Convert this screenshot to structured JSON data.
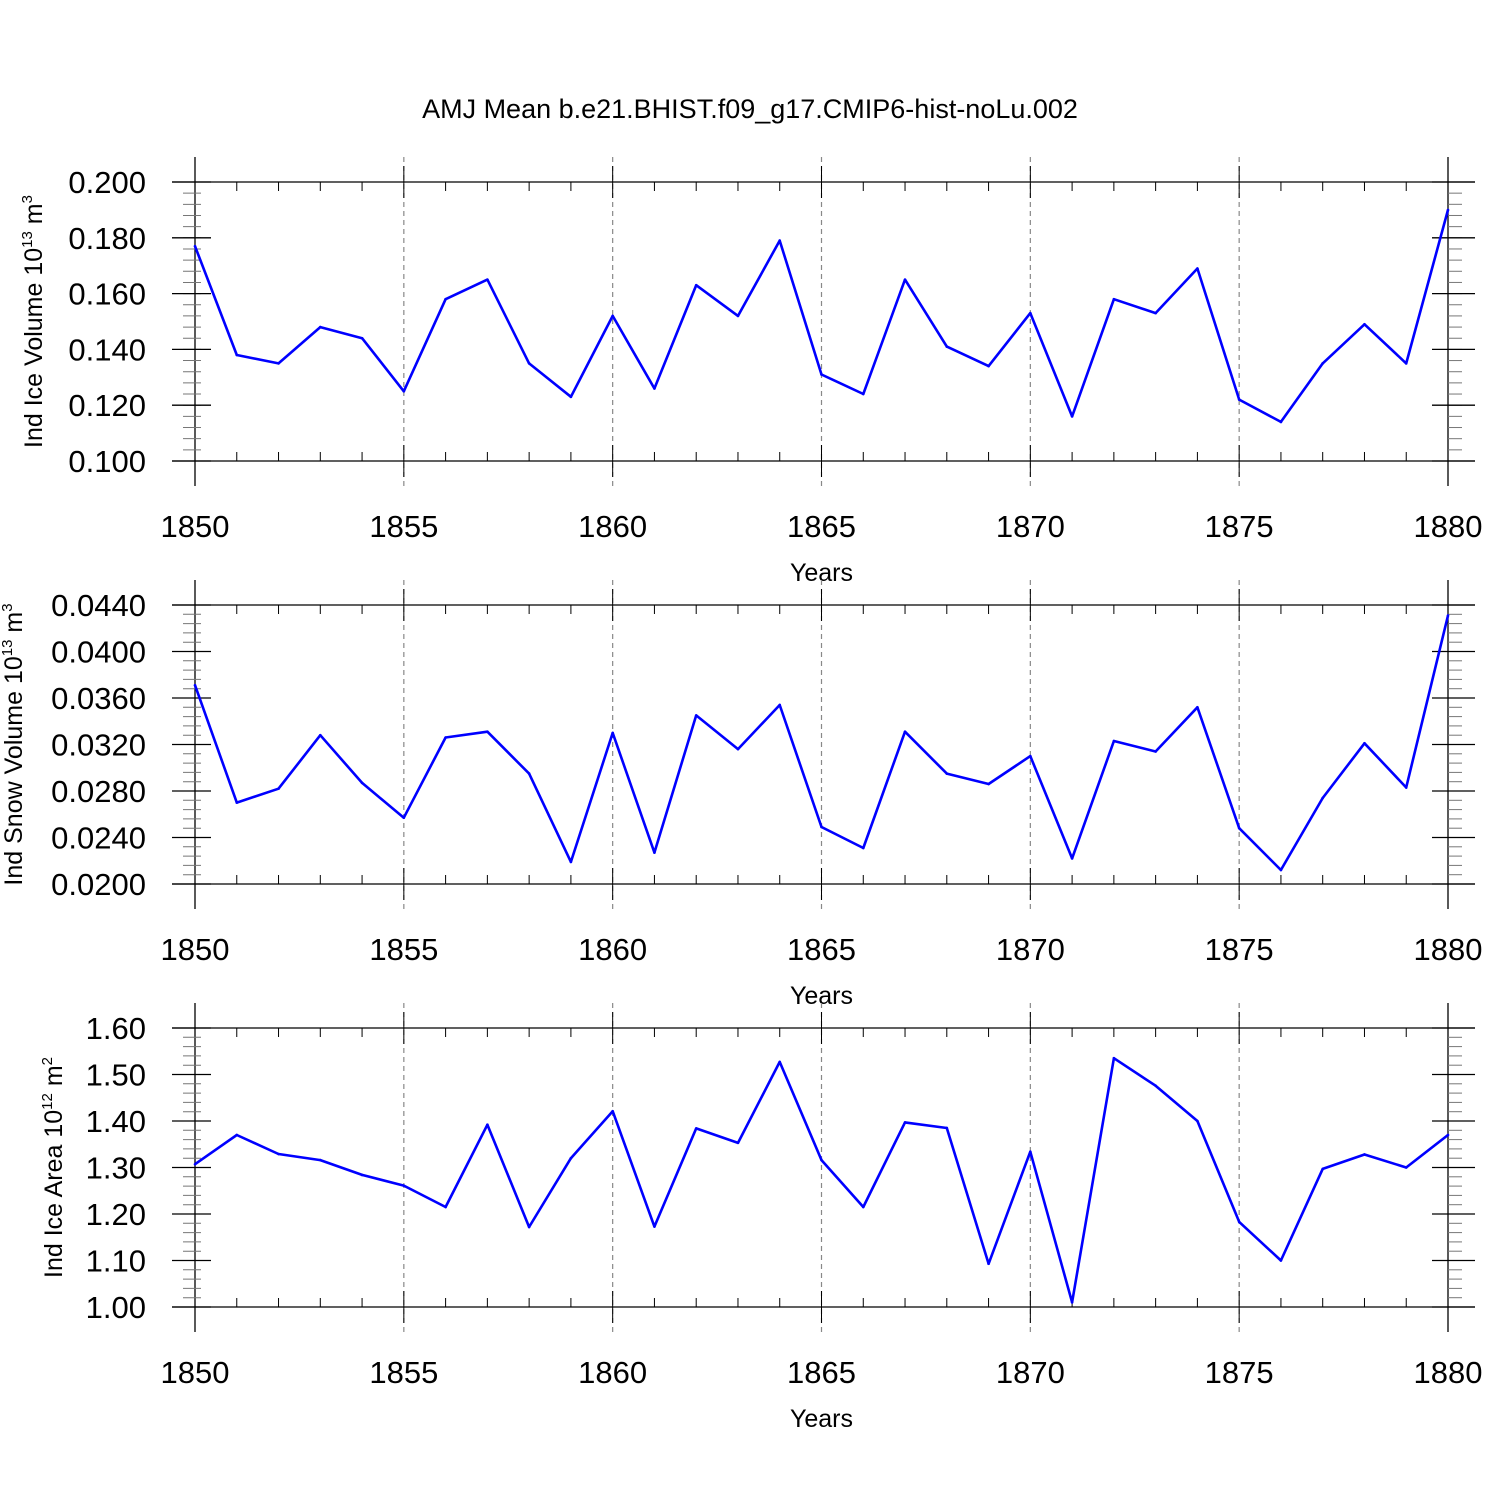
{
  "figure": {
    "title": "AMJ Mean b.e21.BHIST.f09_g17.CMIP6-hist-noLu.002",
    "line_color": "#0000ff",
    "grid_color": "#888888"
  },
  "chart_data": [
    {
      "type": "line",
      "title": "",
      "xlabel": "Years",
      "ylabel": {
        "base": "Ind Ice Volume 10",
        "exp1": "13",
        "unit": " m",
        "exp2": "3"
      },
      "xlim": [
        1850,
        1880
      ],
      "ylim": [
        0.1,
        0.2
      ],
      "xticks": [
        1850,
        1855,
        1860,
        1865,
        1870,
        1875,
        1880
      ],
      "yticks": [
        "0.100",
        "0.120",
        "0.140",
        "0.160",
        "0.180",
        "0.200"
      ],
      "ytick_values": [
        0.1,
        0.12,
        0.14,
        0.16,
        0.18,
        0.2
      ],
      "yminor_step": 0.004,
      "grid": "vertical dashed at major x ticks",
      "x": [
        1850,
        1851,
        1852,
        1853,
        1854,
        1855,
        1856,
        1857,
        1858,
        1859,
        1860,
        1861,
        1862,
        1863,
        1864,
        1865,
        1866,
        1867,
        1868,
        1869,
        1870,
        1871,
        1872,
        1873,
        1874,
        1875,
        1876,
        1877,
        1878,
        1879,
        1880
      ],
      "values": [
        0.177,
        0.138,
        0.135,
        0.148,
        0.144,
        0.125,
        0.158,
        0.165,
        0.135,
        0.123,
        0.152,
        0.126,
        0.163,
        0.152,
        0.179,
        0.131,
        0.124,
        0.165,
        0.141,
        0.134,
        0.153,
        0.116,
        0.158,
        0.153,
        0.169,
        0.122,
        0.114,
        0.135,
        0.149,
        0.135,
        0.19
      ]
    },
    {
      "type": "line",
      "title": "",
      "xlabel": "Years",
      "ylabel": {
        "base": "Ind Snow Volume 10",
        "exp1": "13",
        "unit": " m",
        "exp2": "3"
      },
      "xlim": [
        1850,
        1880
      ],
      "ylim": [
        0.02,
        0.044
      ],
      "xticks": [
        1850,
        1855,
        1860,
        1865,
        1870,
        1875,
        1880
      ],
      "yticks": [
        "0.0200",
        "0.0240",
        "0.0280",
        "0.0320",
        "0.0360",
        "0.0400",
        "0.0440"
      ],
      "ytick_values": [
        0.02,
        0.024,
        0.028,
        0.032,
        0.036,
        0.04,
        0.044
      ],
      "yminor_step": 0.0008,
      "grid": "vertical dashed at major x ticks",
      "x": [
        1850,
        1851,
        1852,
        1853,
        1854,
        1855,
        1856,
        1857,
        1858,
        1859,
        1860,
        1861,
        1862,
        1863,
        1864,
        1865,
        1866,
        1867,
        1868,
        1869,
        1870,
        1871,
        1872,
        1873,
        1874,
        1875,
        1876,
        1877,
        1878,
        1879,
        1880
      ],
      "values": [
        0.0371,
        0.027,
        0.0282,
        0.0328,
        0.0287,
        0.0257,
        0.0326,
        0.0331,
        0.0295,
        0.0219,
        0.033,
        0.0227,
        0.0345,
        0.0316,
        0.0354,
        0.0249,
        0.0231,
        0.0331,
        0.0295,
        0.0286,
        0.031,
        0.0222,
        0.0323,
        0.0314,
        0.0352,
        0.0248,
        0.0212,
        0.0274,
        0.0321,
        0.0283,
        0.0431
      ]
    },
    {
      "type": "line",
      "title": "",
      "xlabel": "Years",
      "ylabel": {
        "base": "Ind Ice Area 10",
        "exp1": "12",
        "unit": " m",
        "exp2": "2"
      },
      "xlim": [
        1850,
        1880
      ],
      "ylim": [
        1.0,
        1.6
      ],
      "xticks": [
        1850,
        1855,
        1860,
        1865,
        1870,
        1875,
        1880
      ],
      "yticks": [
        "1.00",
        "1.10",
        "1.20",
        "1.30",
        "1.40",
        "1.50",
        "1.60"
      ],
      "ytick_values": [
        1.0,
        1.1,
        1.2,
        1.3,
        1.4,
        1.5,
        1.6
      ],
      "yminor_step": 0.02,
      "grid": "vertical dashed at major x ticks",
      "x": [
        1850,
        1851,
        1852,
        1853,
        1854,
        1855,
        1856,
        1857,
        1858,
        1859,
        1860,
        1861,
        1862,
        1863,
        1864,
        1865,
        1866,
        1867,
        1868,
        1869,
        1870,
        1871,
        1872,
        1873,
        1874,
        1875,
        1876,
        1877,
        1878,
        1879,
        1880
      ],
      "values": [
        1.307,
        1.37,
        1.329,
        1.316,
        1.284,
        1.261,
        1.215,
        1.392,
        1.172,
        1.32,
        1.421,
        1.173,
        1.384,
        1.353,
        1.527,
        1.316,
        1.215,
        1.397,
        1.385,
        1.093,
        1.334,
        1.01,
        1.535,
        1.476,
        1.4,
        1.183,
        1.1,
        1.297,
        1.328,
        1.3,
        1.37
      ]
    }
  ]
}
